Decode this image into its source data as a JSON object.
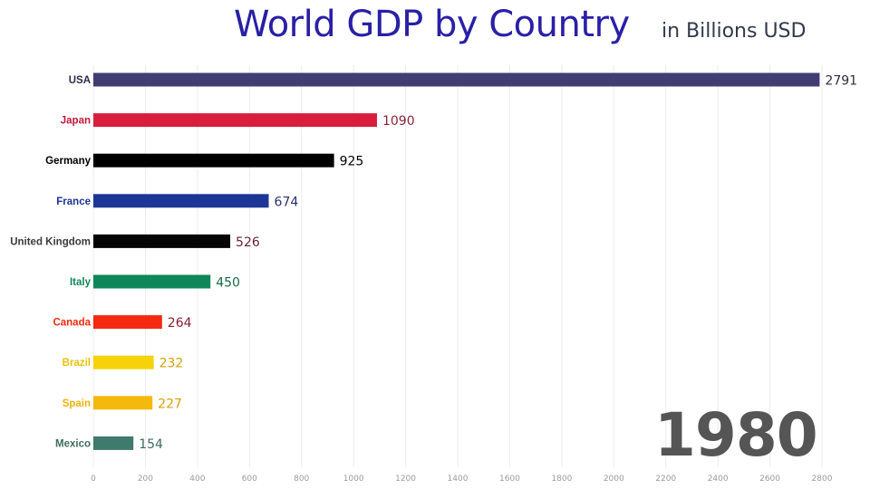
{
  "chart_data": {
    "type": "bar",
    "orientation": "horizontal",
    "title": "World GDP by Country",
    "subtitle": "in Billions USD",
    "year": "1980",
    "categories": [
      "USA",
      "Japan",
      "Germany",
      "France",
      "United Kingdom",
      "Italy",
      "Canada",
      "Brazil",
      "Spain",
      "Mexico"
    ],
    "values": [
      2791,
      1090,
      925,
      674,
      526,
      450,
      264,
      232,
      227,
      154
    ],
    "colors": [
      "#3f3d72",
      "#d81e3c",
      "#000000",
      "#1c3596",
      "#050505",
      "#10875a",
      "#f32a10",
      "#f6d20a",
      "#f5b80c",
      "#3f7b6c"
    ],
    "label_colors": [
      "#2d2d4a",
      "#c2193a",
      "#000000",
      "#1c3596",
      "#3a3a3a",
      "#10875a",
      "#f32a10",
      "#e8c20a",
      "#f0b40c",
      "#3f6b62"
    ],
    "value_label_colors": [
      "#2d2d3a",
      "#8a2340",
      "#000000",
      "#2a3070",
      "#6a2238",
      "#1a6a4a",
      "#8a2030",
      "#d4a20a",
      "#d4a20a",
      "#3f6b62"
    ],
    "xlim": [
      0,
      2800
    ],
    "xticks": [
      "0",
      "200",
      "400",
      "600",
      "800",
      "1000",
      "1200",
      "1400",
      "1600",
      "1800",
      "2000",
      "2200",
      "2400",
      "2600",
      "2800"
    ],
    "grid": true
  }
}
